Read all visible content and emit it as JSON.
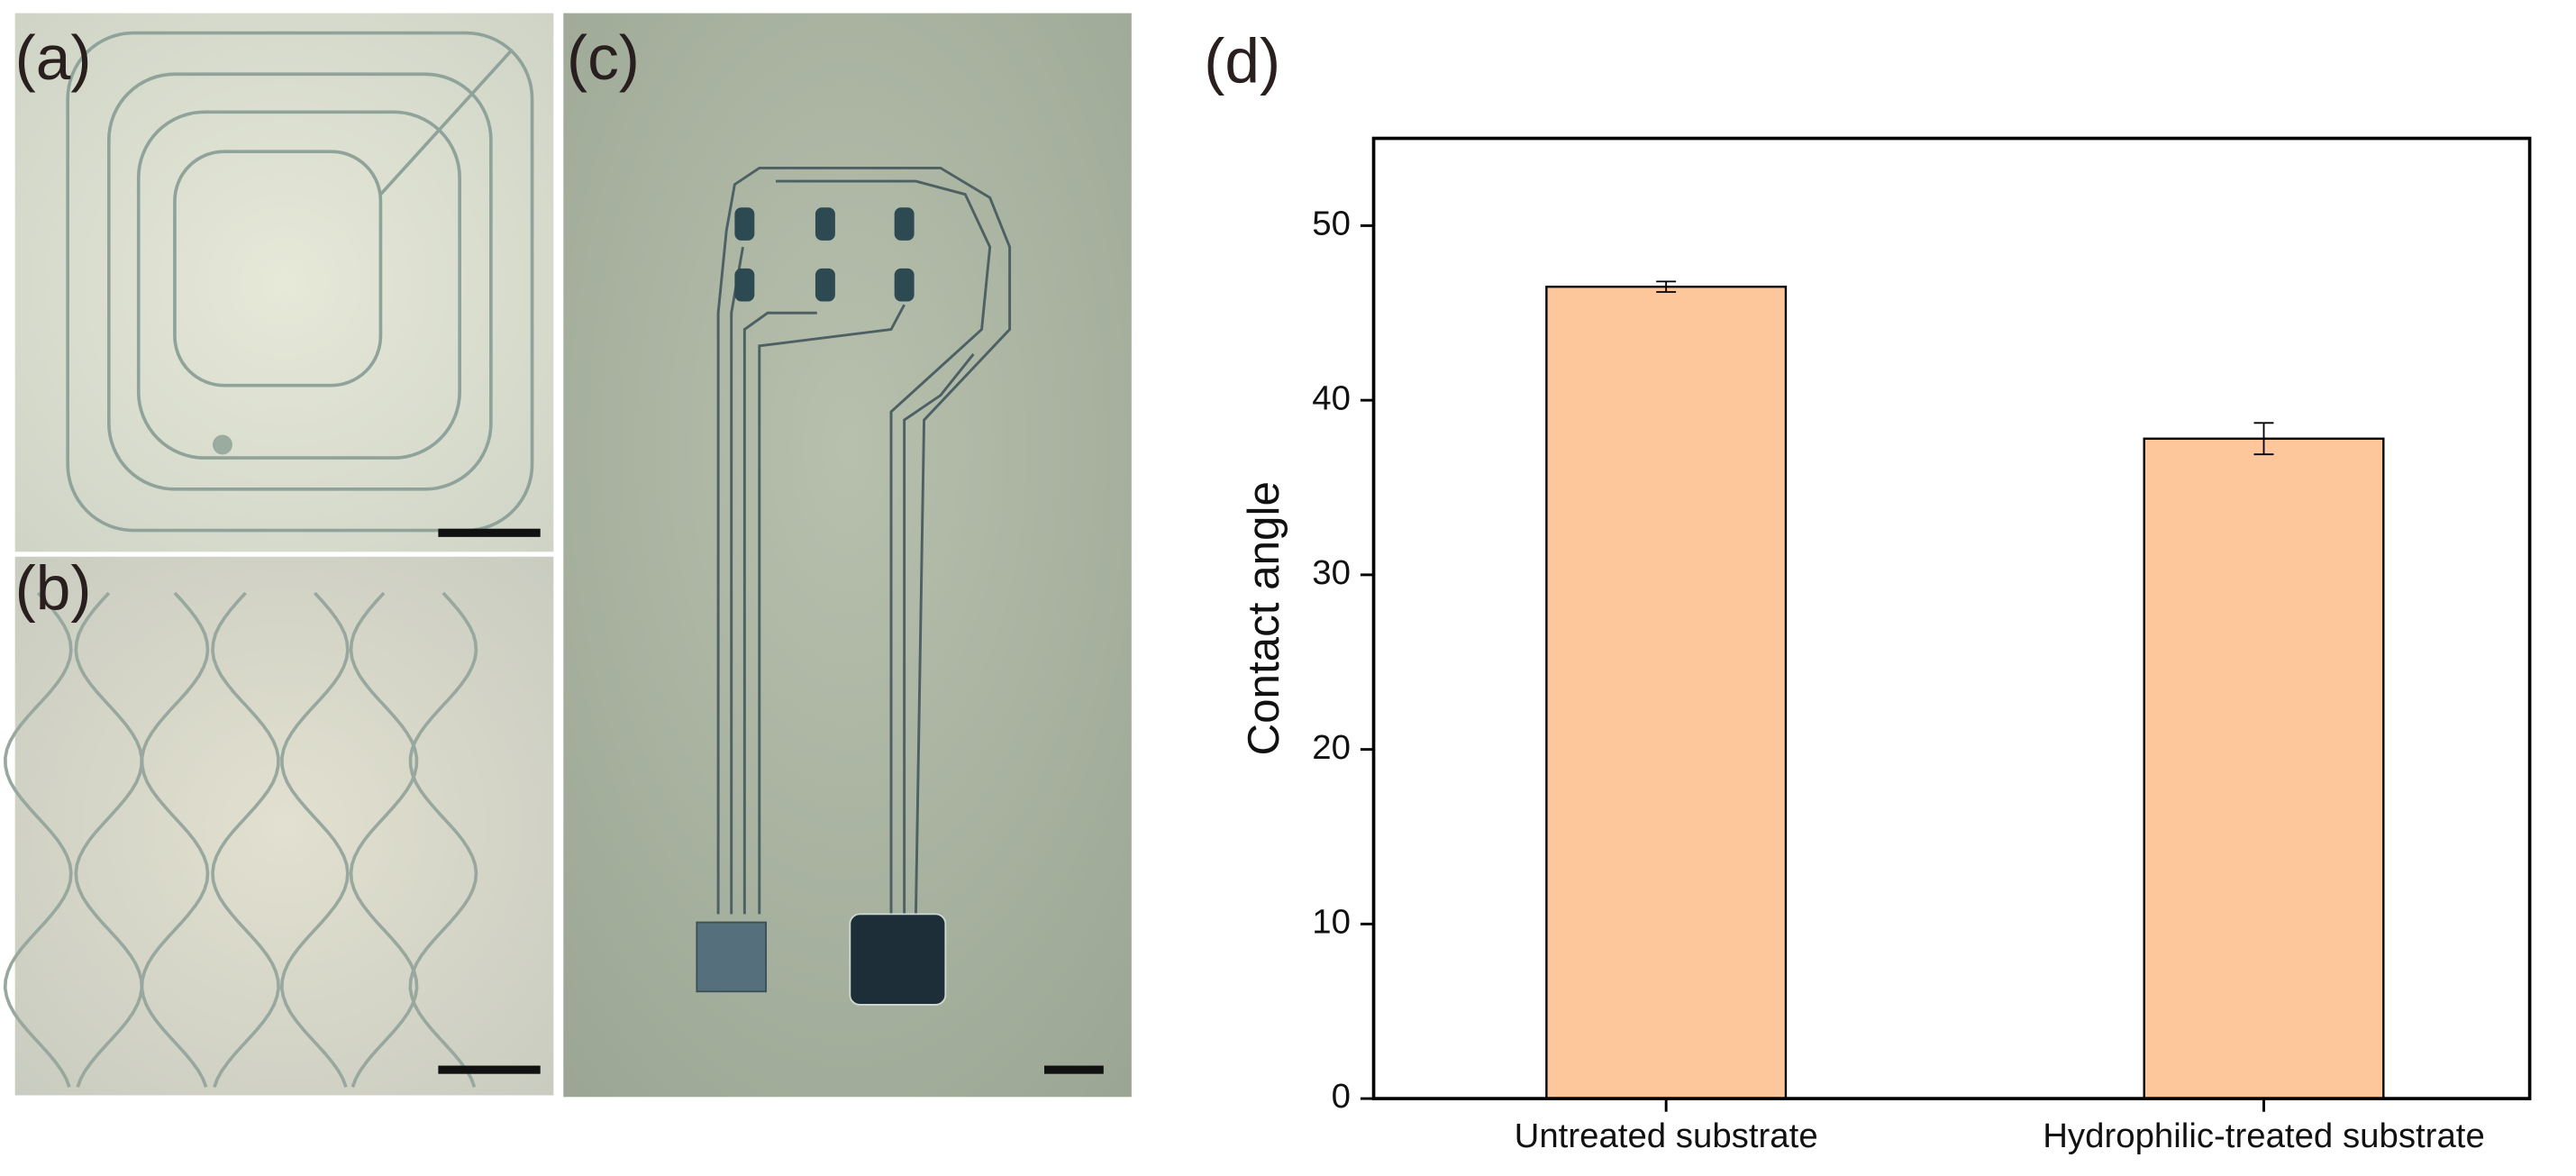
{
  "panels": {
    "a": "(a)",
    "b": "(b)",
    "c": "(c)"
  },
  "chart_data": {
    "type": "bar",
    "panel_label": "(d)",
    "ylabel": "Contact angle",
    "categories": [
      "Untreated substrate",
      "Hydrophilic-treated substrate"
    ],
    "values": [
      46.5,
      37.8
    ],
    "errors": [
      0.3,
      0.9
    ],
    "color": "#fdc79b",
    "ylim": [
      0,
      55
    ],
    "yticks": [
      0,
      10,
      20,
      30,
      40,
      50
    ]
  }
}
